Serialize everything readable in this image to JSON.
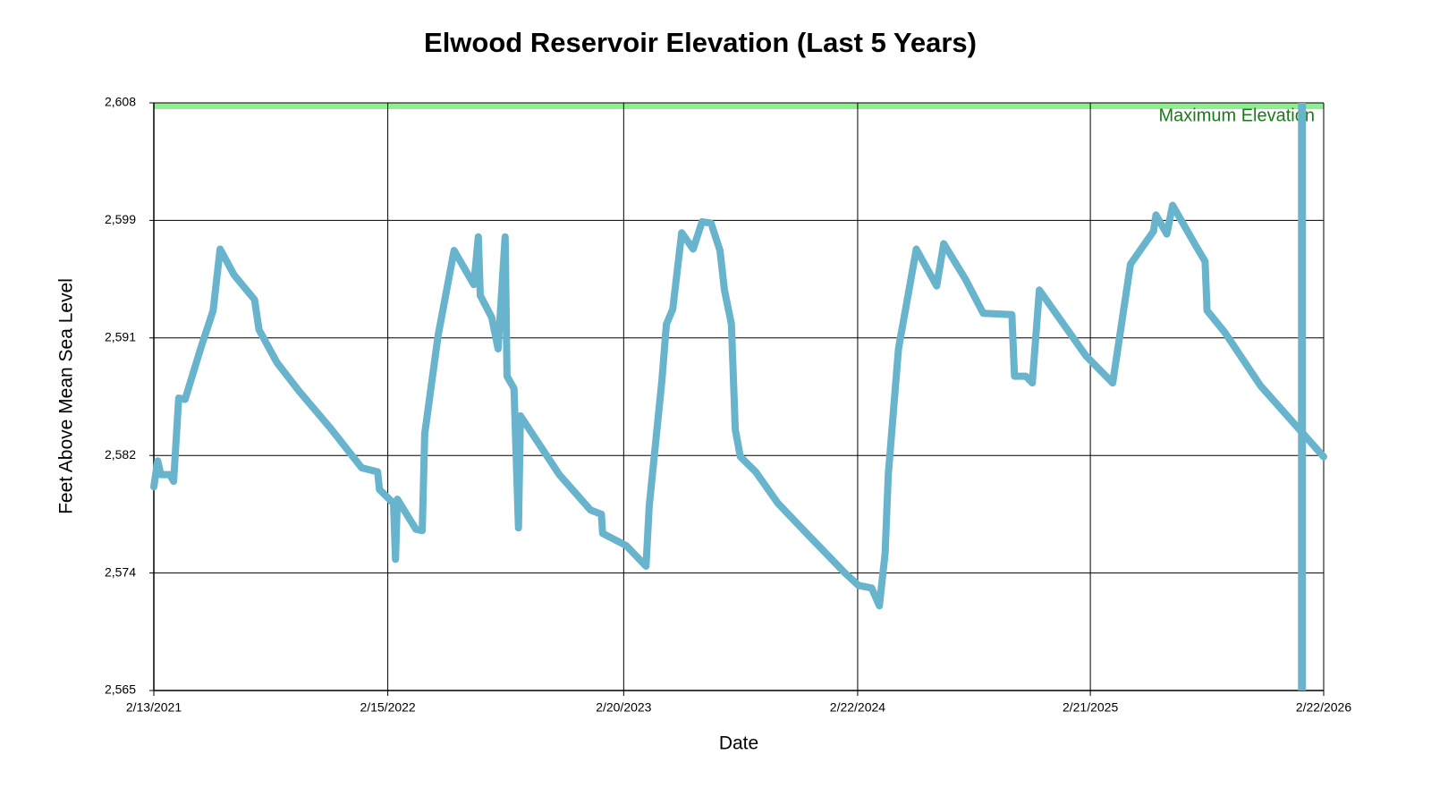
{
  "chart_data": {
    "type": "line",
    "title": "Elwood Reservoir Elevation (Last 5 Years)",
    "x_label": "Date",
    "y_label": "Feet Above Mean Sea Level",
    "x": [
      "2/13/2021",
      "2/19/2021",
      "2/24/2021",
      "3/10/2021",
      "3/16/2021",
      "3/24/2021",
      "4/3/2021",
      "4/28/2021",
      "5/17/2021",
      "5/28/2021",
      "6/19/2021",
      "7/21/2021",
      "7/28/2021",
      "8/25/2021",
      "9/29/2021",
      "11/17/2021",
      "1/5/2022",
      "1/30/2022",
      "2/2/2022",
      "2/24/2022",
      "2/27/2022",
      "3/2/2022",
      "3/31/2022",
      "4/10/2022",
      "4/14/2022",
      "5/5/2022",
      "5/30/2022",
      "6/30/2022",
      "7/7/2022",
      "7/10/2022",
      "7/28/2022",
      "8/7/2022",
      "8/18/2022",
      "8/21/2022",
      "9/1/2022",
      "9/8/2022",
      "9/11/2022",
      "11/11/2022",
      "12/30/2022",
      "1/16/2023",
      "1/18/2023",
      "2/24/2023",
      "3/27/2023",
      "4/1/2023",
      "4/21/2023",
      "4/28/2023",
      "5/8/2023",
      "5/22/2023",
      "6/9/2023",
      "6/23/2023",
      "7/7/2023",
      "7/21/2023",
      "7/28/2023",
      "8/8/2023",
      "8/14/2023",
      "8/22/2023",
      "9/15/2023",
      "10/20/2023",
      "12/8/2023",
      "2/2/2024",
      "2/23/2024",
      "3/15/2024",
      "3/27/2024",
      "4/5/2024",
      "4/10/2024",
      "4/26/2024",
      "5/24/2024",
      "6/25/2024",
      "7/6/2024",
      "8/9/2024",
      "9/6/2024",
      "10/21/2024",
      "10/25/2024",
      "11/12/2024",
      "11/22/2024",
      "12/3/2024",
      "2/14/2025",
      "3/28/2025",
      "4/25/2025",
      "5/31/2025",
      "6/4/2025",
      "6/21/2025",
      "6/30/2025",
      "8/6/2025",
      "8/20/2025",
      "8/23/2025",
      "9/20/2025",
      "11/15/2025",
      "2/22/2026"
    ],
    "series": [
      {
        "color": "#67b4cc",
        "values": [
          2579.9,
          2581.8,
          2580.8,
          2580.8,
          2580.3,
          2586.4,
          2586.3,
          2590.1,
          2592.8,
          2597.3,
          2595.4,
          2593.6,
          2591.4,
          2589.0,
          2586.9,
          2584.2,
          2581.3,
          2581.0,
          2579.7,
          2578.7,
          2574.6,
          2579.0,
          2576.8,
          2576.7,
          2583.8,
          2591.0,
          2597.2,
          2594.7,
          2598.2,
          2593.9,
          2592.3,
          2590.0,
          2598.2,
          2588.0,
          2587.1,
          2576.9,
          2585.1,
          2580.8,
          2578.2,
          2577.9,
          2576.5,
          2575.6,
          2574.1,
          2578.5,
          2587.7,
          2591.8,
          2592.9,
          2598.5,
          2597.3,
          2599.3,
          2599.2,
          2597.2,
          2594.3,
          2591.8,
          2584.1,
          2582.1,
          2581.0,
          2578.7,
          2576.3,
          2573.6,
          2572.7,
          2572.5,
          2571.2,
          2575.0,
          2580.8,
          2590.0,
          2597.3,
          2594.6,
          2597.7,
          2595.1,
          2592.6,
          2592.5,
          2588.0,
          2588.0,
          2587.5,
          2594.3,
          2589.5,
          2587.5,
          2596.2,
          2598.6,
          2599.8,
          2598.4,
          2600.5,
          2597.5,
          2596.4,
          2592.8,
          2591.2,
          2587.3,
          2582.1
        ]
      }
    ],
    "xlim": [
      "2/13/2021",
      "2/22/2026"
    ],
    "xticks": [
      "2/13/2021",
      "2/15/2022",
      "2/20/2023",
      "2/22/2024",
      "2/21/2025",
      "2/22/2026"
    ],
    "ylim": [
      2565,
      2608
    ],
    "yticks": [
      {
        "value": 2565,
        "label": "2,565"
      },
      {
        "value": 2573.6,
        "label": "2,574"
      },
      {
        "value": 2582.2,
        "label": "2,582"
      },
      {
        "value": 2590.8,
        "label": "2,591"
      },
      {
        "value": 2599.4,
        "label": "2,599"
      },
      {
        "value": 2608,
        "label": "2,608"
      }
    ],
    "grid": true,
    "max_band": {
      "value": 2608,
      "label": "Maximum Elevation",
      "color": "#90ee90",
      "text_color": "#1a7a1a"
    },
    "vertical_line": {
      "x": "1/19/2026",
      "color": "#67b4cc"
    }
  }
}
